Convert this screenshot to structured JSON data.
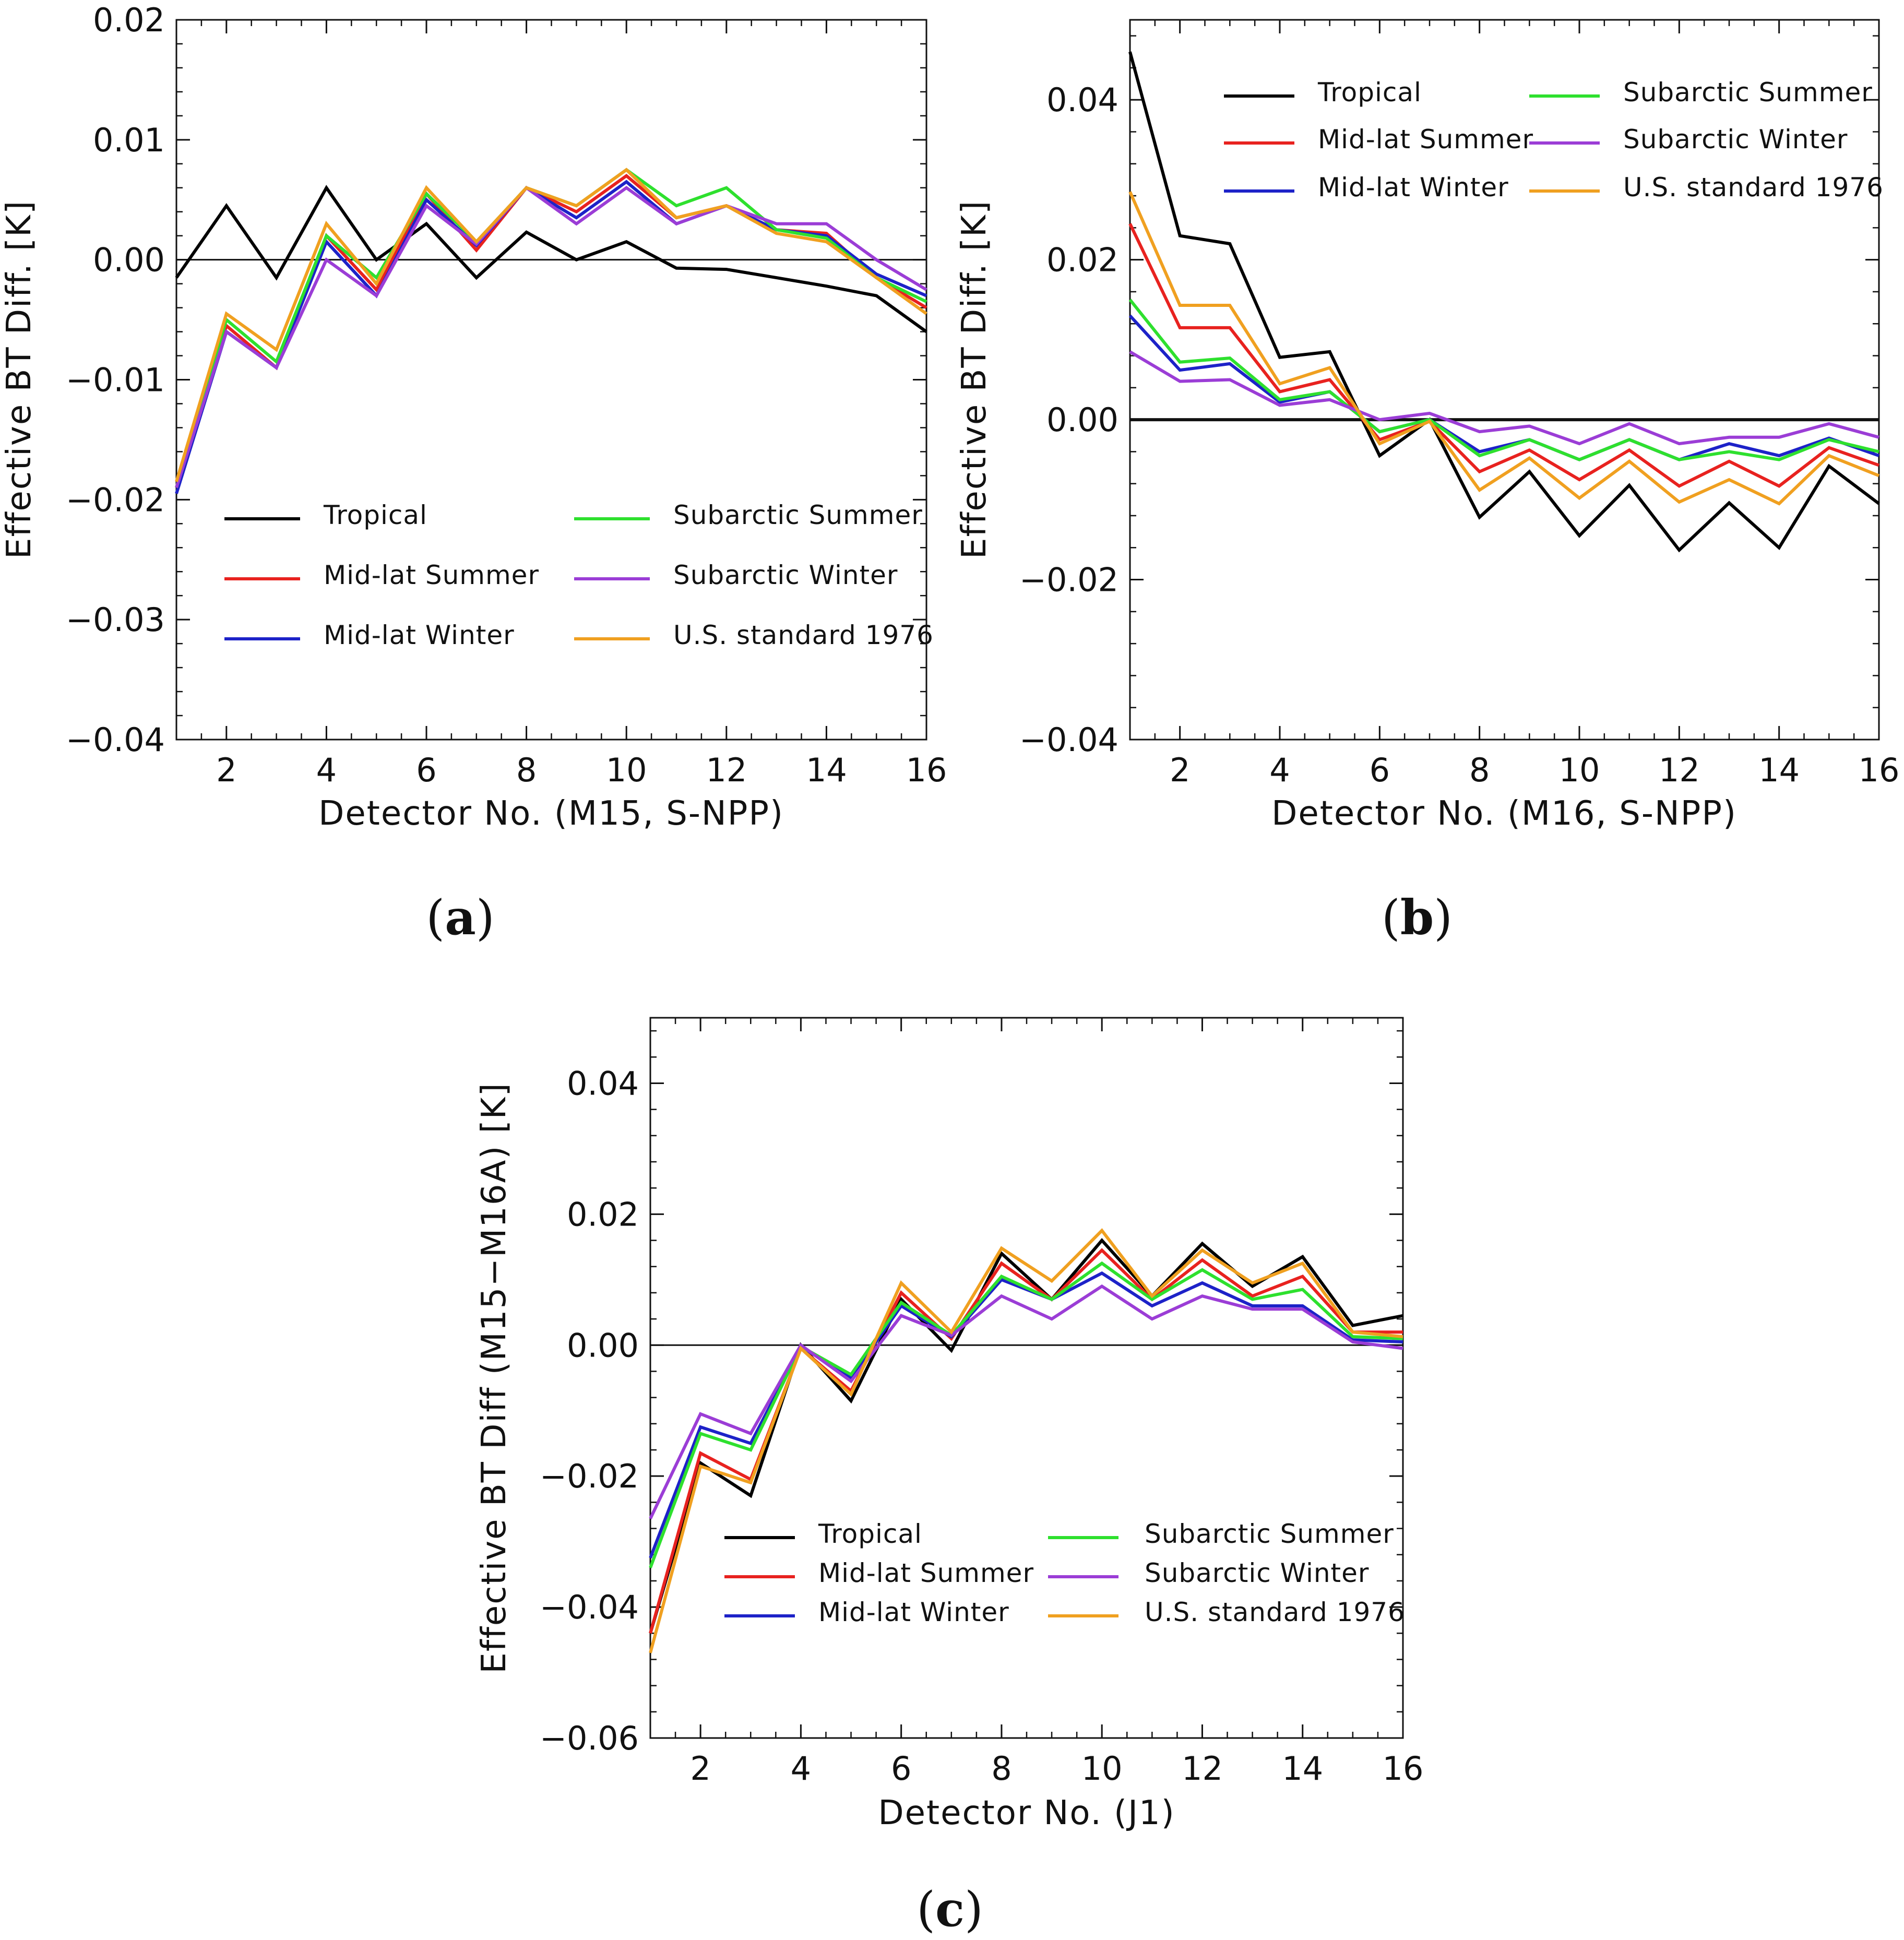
{
  "chart_data": [
    {
      "type": "line",
      "panel_label": "(a)",
      "panel_letter": "a",
      "xlabel": "Detector No. (M15, S-NPP)",
      "ylabel": "Effective BT Diff. [K]",
      "xlim": [
        1,
        16
      ],
      "ylim": [
        -0.04,
        0.02
      ],
      "xticks": [
        2,
        4,
        6,
        8,
        10,
        12,
        14,
        16
      ],
      "xtick_labels": [
        "2",
        "4",
        "6",
        "8",
        "10",
        "12",
        "14",
        "16"
      ],
      "yticks": [
        -0.04,
        -0.03,
        -0.02,
        -0.01,
        0.0,
        0.01,
        0.02
      ],
      "ytick_labels": [
        "−0.04",
        "−0.03",
        "−0.02",
        "−0.01",
        "0.00",
        "0.01",
        "0.02"
      ],
      "x_minor_step": 0.5,
      "y_minor_step": 0.002,
      "zero_line": true,
      "legend_placement": "lower-center",
      "x": [
        1,
        2,
        3,
        4,
        5,
        6,
        7,
        8,
        9,
        10,
        11,
        12,
        13,
        14,
        15,
        16
      ],
      "series": [
        {
          "name": "Tropical",
          "color": "#000000",
          "values": [
            -0.0015,
            0.0045,
            -0.0015,
            0.006,
            0.0,
            0.003,
            -0.0015,
            0.0023,
            0.0,
            0.0015,
            -0.0007,
            -0.0008,
            -0.0015,
            -0.0022,
            -0.003,
            -0.006
          ]
        },
        {
          "name": "Mid-lat Summer",
          "color": "#e8221f",
          "values": [
            -0.019,
            -0.0055,
            -0.009,
            0.002,
            -0.0025,
            0.0055,
            0.0008,
            0.006,
            0.004,
            0.007,
            0.0035,
            0.0045,
            0.0025,
            0.0022,
            -0.0015,
            -0.004
          ]
        },
        {
          "name": "Mid-lat Winter",
          "color": "#1d22c8",
          "values": [
            -0.0195,
            -0.006,
            -0.009,
            0.0015,
            -0.003,
            0.005,
            0.0012,
            0.006,
            0.0035,
            0.0065,
            0.003,
            0.0045,
            0.0025,
            0.002,
            -0.0012,
            -0.003
          ]
        },
        {
          "name": "Subarctic Summer",
          "color": "#2ee02e",
          "values": [
            -0.019,
            -0.005,
            -0.0085,
            0.002,
            -0.0015,
            0.0055,
            0.0015,
            0.006,
            0.0045,
            0.0075,
            0.0045,
            0.006,
            0.0025,
            0.0018,
            -0.0015,
            -0.0035
          ]
        },
        {
          "name": "Subarctic Winter",
          "color": "#9b3dd6",
          "values": [
            -0.019,
            -0.006,
            -0.009,
            0.0,
            -0.003,
            0.0045,
            0.0013,
            0.006,
            0.003,
            0.006,
            0.003,
            0.0045,
            0.003,
            0.003,
            0.0,
            -0.0025
          ]
        },
        {
          "name": "U.S. standard 1976",
          "color": "#f0a020",
          "values": [
            -0.0185,
            -0.0045,
            -0.0075,
            0.003,
            -0.002,
            0.006,
            0.0015,
            0.006,
            0.0045,
            0.0075,
            0.0035,
            0.0045,
            0.0022,
            0.0015,
            -0.0015,
            -0.0045
          ]
        }
      ]
    },
    {
      "type": "line",
      "panel_label": "(b)",
      "panel_letter": "b",
      "xlabel": "Detector No. (M16, S-NPP)",
      "ylabel": "Effective BT Diff. [K]",
      "xlim": [
        1,
        16
      ],
      "ylim": [
        -0.04,
        0.05
      ],
      "xticks": [
        2,
        4,
        6,
        8,
        10,
        12,
        14,
        16
      ],
      "xtick_labels": [
        "2",
        "4",
        "6",
        "8",
        "10",
        "12",
        "14",
        "16"
      ],
      "yticks": [
        -0.04,
        -0.02,
        0.0,
        0.02,
        0.04
      ],
      "ytick_labels": [
        "−0.04",
        "−0.02",
        "0.00",
        "0.02",
        "0.04"
      ],
      "x_minor_step": 0.5,
      "y_minor_step": 0.004,
      "zero_line": true,
      "legend_placement": "top",
      "x": [
        1,
        2,
        3,
        4,
        5,
        6,
        7,
        8,
        9,
        10,
        11,
        12,
        13,
        14,
        15,
        16
      ],
      "series": [
        {
          "name": "Tropical",
          "color": "#000000",
          "values": [
            0.046,
            0.023,
            0.022,
            0.0078,
            0.0085,
            -0.0045,
            0.0,
            -0.0122,
            -0.0065,
            -0.0145,
            -0.0082,
            -0.0163,
            -0.0104,
            -0.016,
            -0.0058,
            -0.0105
          ]
        },
        {
          "name": "Mid-lat Summer",
          "color": "#e8221f",
          "values": [
            0.0245,
            0.0115,
            0.0115,
            0.0035,
            0.005,
            -0.0025,
            -0.0002,
            -0.0065,
            -0.0038,
            -0.0075,
            -0.0038,
            -0.0083,
            -0.0052,
            -0.0083,
            -0.0035,
            -0.0057
          ]
        },
        {
          "name": "Mid-lat Winter",
          "color": "#1d22c8",
          "values": [
            0.013,
            0.0062,
            0.007,
            0.0022,
            0.0035,
            -0.0015,
            0.0,
            -0.004,
            -0.0025,
            -0.005,
            -0.0025,
            -0.005,
            -0.003,
            -0.0045,
            -0.0023,
            -0.0045
          ]
        },
        {
          "name": "Subarctic Summer",
          "color": "#2ee02e",
          "values": [
            0.015,
            0.0072,
            0.0077,
            0.0025,
            0.0035,
            -0.0015,
            0.0,
            -0.0045,
            -0.0025,
            -0.005,
            -0.0025,
            -0.005,
            -0.004,
            -0.005,
            -0.0025,
            -0.004
          ]
        },
        {
          "name": "Subarctic Winter",
          "color": "#9b3dd6",
          "values": [
            0.0085,
            0.0048,
            0.005,
            0.0018,
            0.0025,
            0.0,
            0.0008,
            -0.0015,
            -0.0008,
            -0.003,
            -0.0005,
            -0.003,
            -0.0022,
            -0.0022,
            -0.0005,
            -0.0022
          ]
        },
        {
          "name": "U.S. standard 1976",
          "color": "#f0a020",
          "values": [
            0.0285,
            0.0143,
            0.0143,
            0.0045,
            0.0065,
            -0.003,
            -0.0002,
            -0.0088,
            -0.0048,
            -0.0098,
            -0.0052,
            -0.0103,
            -0.0075,
            -0.0105,
            -0.0045,
            -0.007
          ]
        }
      ]
    },
    {
      "type": "line",
      "panel_label": "(c)",
      "panel_letter": "c",
      "xlabel": "Detector No. (J1)",
      "ylabel": "Effective BT Diff (M15−M16A) [K]",
      "xlim": [
        1,
        16
      ],
      "ylim": [
        -0.06,
        0.05
      ],
      "xticks": [
        2,
        4,
        6,
        8,
        10,
        12,
        14,
        16
      ],
      "xtick_labels": [
        "2",
        "4",
        "6",
        "8",
        "10",
        "12",
        "14",
        "16"
      ],
      "yticks": [
        -0.06,
        -0.04,
        -0.02,
        0.0,
        0.02,
        0.04
      ],
      "ytick_labels": [
        "−0.06",
        "−0.04",
        "−0.02",
        "0.00",
        "0.02",
        "0.04"
      ],
      "x_minor_step": 0.5,
      "y_minor_step": 0.004,
      "zero_line": true,
      "legend_placement": "lower-right",
      "x": [
        1,
        2,
        3,
        4,
        5,
        6,
        7,
        8,
        9,
        10,
        11,
        12,
        13,
        14,
        15,
        16
      ],
      "series": [
        {
          "name": "Tropical",
          "color": "#000000",
          "values": [
            -0.044,
            -0.018,
            -0.023,
            0.0,
            -0.0085,
            0.007,
            -0.0008,
            0.014,
            0.007,
            0.016,
            0.0075,
            0.0155,
            0.009,
            0.0135,
            0.003,
            0.0045
          ]
        },
        {
          "name": "Mid-lat Summer",
          "color": "#e8221f",
          "values": [
            -0.044,
            -0.0165,
            -0.0205,
            -0.0005,
            -0.007,
            0.008,
            0.001,
            0.0125,
            0.007,
            0.0145,
            0.007,
            0.013,
            0.0075,
            0.0105,
            0.002,
            0.002
          ]
        },
        {
          "name": "Mid-lat Winter",
          "color": "#1d22c8",
          "values": [
            -0.0325,
            -0.0125,
            -0.015,
            -0.0002,
            -0.005,
            0.006,
            0.0013,
            0.01,
            0.007,
            0.011,
            0.006,
            0.0095,
            0.006,
            0.006,
            0.0008,
            0.0005
          ]
        },
        {
          "name": "Subarctic Summer",
          "color": "#2ee02e",
          "values": [
            -0.034,
            -0.0135,
            -0.016,
            -0.0002,
            -0.0045,
            0.0065,
            0.0015,
            0.0105,
            0.007,
            0.0125,
            0.007,
            0.0115,
            0.007,
            0.0085,
            0.0013,
            0.001
          ]
        },
        {
          "name": "Subarctic Winter",
          "color": "#9b3dd6",
          "values": [
            -0.0265,
            -0.0105,
            -0.0135,
            0.0,
            -0.0055,
            0.0045,
            0.0015,
            0.0075,
            0.004,
            0.009,
            0.004,
            0.0075,
            0.0055,
            0.0055,
            0.0005,
            -0.0005
          ]
        },
        {
          "name": "U.S. standard 1976",
          "color": "#f0a020",
          "values": [
            -0.047,
            -0.0185,
            -0.021,
            -0.0005,
            -0.0075,
            0.0095,
            0.002,
            0.0148,
            0.0098,
            0.0175,
            0.0075,
            0.0145,
            0.0095,
            0.0125,
            0.002,
            0.0013
          ]
        }
      ]
    }
  ]
}
